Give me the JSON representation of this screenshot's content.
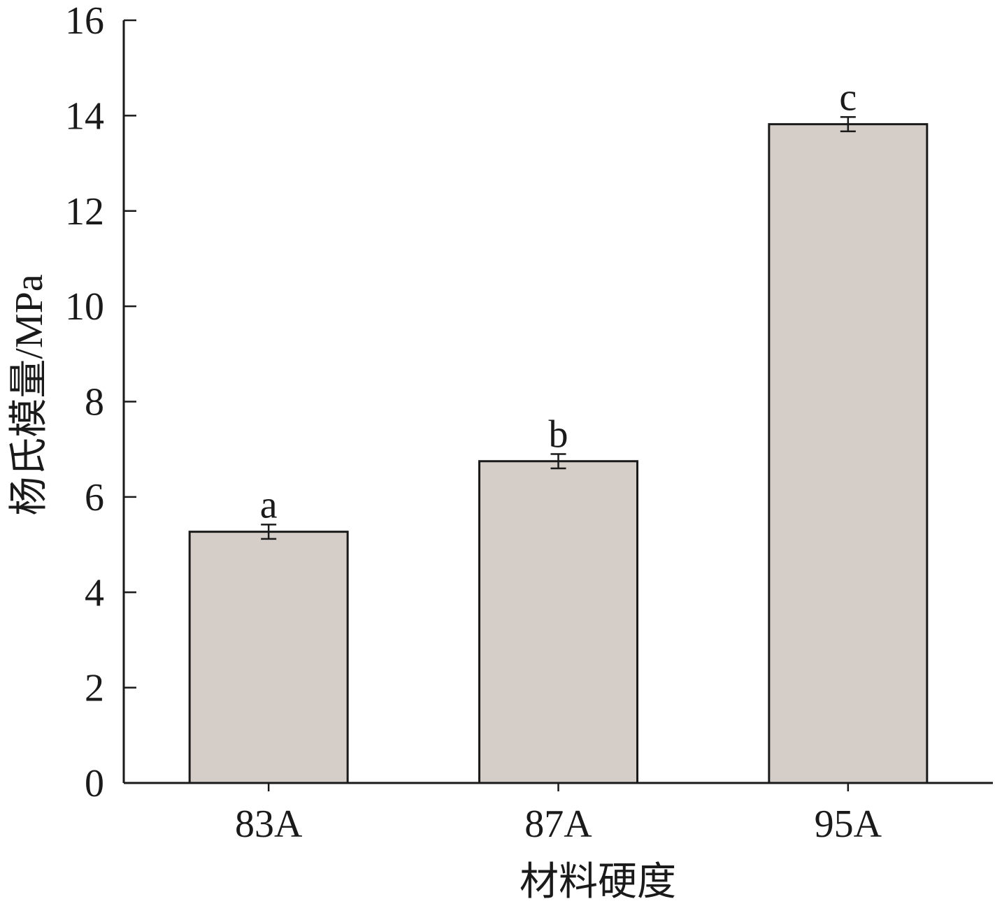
{
  "chart_data": {
    "type": "bar",
    "title": "",
    "xlabel": "材料硬度",
    "ylabel": "杨氏模量/MPa",
    "categories": [
      "83A",
      "87A",
      "95A"
    ],
    "series": [
      {
        "values": [
          5.27,
          6.75,
          13.82
        ],
        "errors": [
          0.15,
          0.15,
          0.15
        ],
        "labels": [
          "a",
          "b",
          "c"
        ]
      }
    ],
    "ylim": [
      0,
      16
    ],
    "yticks": [
      0,
      2,
      4,
      6,
      8,
      10,
      12,
      14,
      16
    ],
    "grid": false,
    "legend": "none",
    "colors": {
      "bar_fill": "#d5cdc8",
      "bar_stroke": "#1a1a1a",
      "axis": "#1a1a1a"
    }
  }
}
